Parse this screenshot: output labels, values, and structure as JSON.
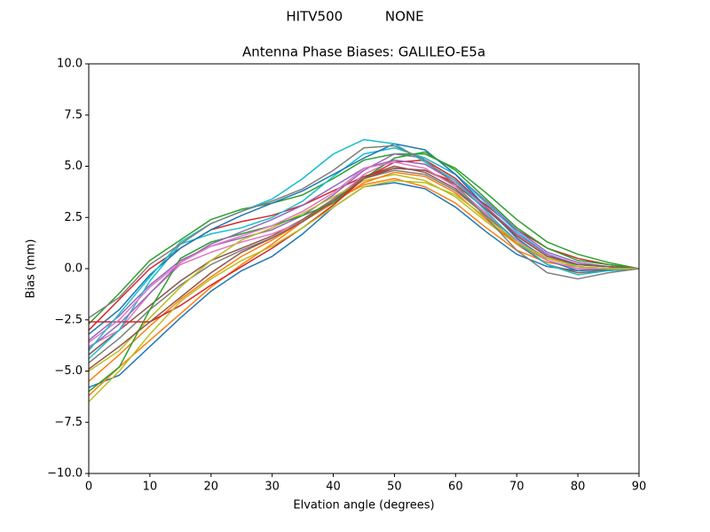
{
  "chart_data": {
    "type": "line",
    "suptitle": "HITV500          NONE",
    "title": "Antenna Phase Biases: GALILEO-E5a",
    "xlabel": "Elvation angle (degrees)",
    "ylabel": "Bias (mm)",
    "x": [
      0,
      5,
      10,
      15,
      20,
      25,
      30,
      35,
      40,
      45,
      50,
      55,
      60,
      65,
      70,
      75,
      80,
      85,
      90
    ],
    "xlim": [
      0,
      90
    ],
    "xticks": [
      0,
      10,
      20,
      30,
      40,
      50,
      60,
      70,
      80,
      90
    ],
    "ylim": [
      -10,
      10
    ],
    "yticks": [
      {
        "value": -10,
        "label": "−10.0"
      },
      {
        "value": -7.5,
        "label": "−7.5"
      },
      {
        "value": -5,
        "label": "−5.0"
      },
      {
        "value": -2.5,
        "label": "−2.5"
      },
      {
        "value": 0,
        "label": "0.0"
      },
      {
        "value": 2.5,
        "label": "2.5"
      },
      {
        "value": 5,
        "label": "5.0"
      },
      {
        "value": 7.5,
        "label": "7.5"
      },
      {
        "value": 10,
        "label": "10.0"
      }
    ],
    "series": [
      {
        "color": "#1f77b4",
        "values": [
          -5.8,
          -5.2,
          -3.8,
          -2.4,
          -1.1,
          -0.1,
          0.6,
          1.7,
          3.0,
          4.0,
          4.2,
          3.9,
          3.0,
          1.8,
          0.7,
          0.1,
          -0.1,
          -0.05,
          0
        ]
      },
      {
        "color": "#ff7f0e",
        "values": [
          -6.2,
          -4.8,
          -3.5,
          -2.2,
          -0.9,
          0.2,
          1.2,
          2.3,
          3.3,
          4.1,
          4.4,
          4.0,
          3.2,
          2.0,
          0.9,
          0.3,
          0.1,
          0.0,
          0
        ]
      },
      {
        "color": "#2ca02c",
        "values": [
          -2.7,
          -1.2,
          0.4,
          1.4,
          2.4,
          2.9,
          3.2,
          3.6,
          4.4,
          5.3,
          5.6,
          5.6,
          4.9,
          3.7,
          2.4,
          1.3,
          0.7,
          0.3,
          0
        ]
      },
      {
        "color": "#d62728",
        "values": [
          -3.0,
          -1.5,
          0.0,
          1.0,
          1.9,
          2.3,
          2.6,
          3.1,
          3.8,
          4.5,
          4.9,
          4.8,
          4.2,
          3.1,
          1.9,
          1.0,
          0.5,
          0.2,
          0
        ]
      },
      {
        "color": "#9467bd",
        "values": [
          -3.5,
          -2.3,
          -0.8,
          0.4,
          1.1,
          1.5,
          1.9,
          2.6,
          3.6,
          4.8,
          5.6,
          5.4,
          4.6,
          3.3,
          1.9,
          0.8,
          0.3,
          0.1,
          0
        ]
      },
      {
        "color": "#8c564b",
        "values": [
          -4.2,
          -3.0,
          -1.8,
          -0.6,
          0.4,
          1.0,
          1.6,
          2.4,
          3.4,
          4.5,
          5.0,
          4.7,
          3.9,
          2.6,
          1.2,
          0.2,
          -0.2,
          -0.1,
          0
        ]
      },
      {
        "color": "#e377c2",
        "values": [
          -3.8,
          -3.0,
          -1.2,
          0.2,
          0.8,
          1.3,
          1.7,
          2.3,
          3.3,
          4.6,
          5.3,
          5.1,
          4.2,
          2.9,
          1.6,
          0.6,
          0.2,
          0.1,
          0
        ]
      },
      {
        "color": "#7f7f7f",
        "values": [
          -4.6,
          -3.4,
          -2.0,
          -0.8,
          0.2,
          0.9,
          1.5,
          2.3,
          3.4,
          4.4,
          4.8,
          4.6,
          3.8,
          2.6,
          1.4,
          0.5,
          0.1,
          0.0,
          0
        ]
      },
      {
        "color": "#bcbd22",
        "values": [
          -5.0,
          -4.0,
          -2.4,
          -0.9,
          0.4,
          1.4,
          2.0,
          2.7,
          3.5,
          4.3,
          4.6,
          4.3,
          3.5,
          2.3,
          1.2,
          0.5,
          0.2,
          0.1,
          0
        ]
      },
      {
        "color": "#17becf",
        "values": [
          -4.4,
          -3.0,
          -0.6,
          1.2,
          1.7,
          2.0,
          2.5,
          3.3,
          4.5,
          5.6,
          5.9,
          5.4,
          4.6,
          3.2,
          1.8,
          0.7,
          0.1,
          0.0,
          0
        ]
      },
      {
        "color": "#1f77b4",
        "values": [
          -3.2,
          -2.0,
          -0.3,
          1.0,
          1.9,
          2.6,
          3.2,
          3.8,
          4.6,
          5.4,
          6.1,
          5.8,
          4.6,
          3.0,
          1.5,
          0.4,
          -0.1,
          0.0,
          0
        ]
      },
      {
        "color": "#ff7f0e",
        "values": [
          -5.5,
          -4.2,
          -2.8,
          -1.5,
          -0.4,
          0.6,
          1.4,
          2.3,
          3.2,
          4.2,
          4.7,
          4.5,
          3.7,
          2.4,
          1.2,
          0.4,
          0.0,
          0.0,
          0
        ]
      },
      {
        "color": "#2ca02c",
        "values": [
          -6.0,
          -4.8,
          -2.0,
          0.5,
          1.3,
          1.7,
          2.1,
          2.6,
          3.2,
          4.4,
          5.4,
          5.7,
          4.8,
          3.4,
          2.0,
          1.0,
          0.4,
          0.2,
          0
        ]
      },
      {
        "color": "#d62728",
        "values": [
          -2.6,
          -2.6,
          -2.6,
          -1.8,
          -0.8,
          0.1,
          1.0,
          2.0,
          3.1,
          4.4,
          5.2,
          5.3,
          4.4,
          3.0,
          1.6,
          0.6,
          0.2,
          0.1,
          0
        ]
      },
      {
        "color": "#9467bd",
        "values": [
          -3.9,
          -2.7,
          -1.2,
          0.3,
          1.2,
          1.8,
          2.4,
          3.1,
          4.0,
          4.9,
          5.3,
          5.1,
          4.3,
          3.0,
          1.7,
          0.7,
          0.2,
          0.1,
          0
        ]
      },
      {
        "color": "#8c564b",
        "values": [
          -4.9,
          -3.8,
          -2.6,
          -1.4,
          -0.2,
          0.8,
          1.5,
          2.3,
          3.3,
          4.4,
          4.9,
          4.8,
          4.1,
          2.9,
          1.6,
          0.6,
          0.2,
          0.1,
          0
        ]
      },
      {
        "color": "#e377c2",
        "values": [
          -3.6,
          -2.5,
          -0.9,
          0.3,
          1.1,
          1.6,
          2.1,
          2.8,
          3.7,
          4.9,
          5.2,
          4.9,
          4.0,
          2.7,
          1.4,
          0.4,
          0.0,
          0.0,
          0
        ]
      },
      {
        "color": "#17becf",
        "values": [
          -4.0,
          -2.2,
          -0.4,
          1.3,
          2.2,
          2.8,
          3.4,
          4.4,
          5.6,
          6.3,
          6.1,
          5.2,
          4.3,
          2.8,
          1.3,
          0.2,
          -0.3,
          -0.1,
          0
        ]
      },
      {
        "color": "#bcbd22",
        "values": [
          -6.5,
          -5.0,
          -3.2,
          -1.6,
          -0.5,
          0.4,
          1.1,
          2.0,
          3.0,
          4.0,
          4.3,
          4.2,
          3.6,
          2.5,
          1.3,
          0.5,
          0.1,
          0.0,
          0
        ]
      },
      {
        "color": "#7f7f7f",
        "values": [
          -2.4,
          -1.4,
          0.2,
          1.2,
          2.2,
          2.8,
          3.3,
          3.9,
          4.8,
          5.9,
          6.0,
          5.3,
          4.1,
          2.5,
          0.9,
          -0.2,
          -0.5,
          -0.2,
          0
        ]
      }
    ]
  }
}
